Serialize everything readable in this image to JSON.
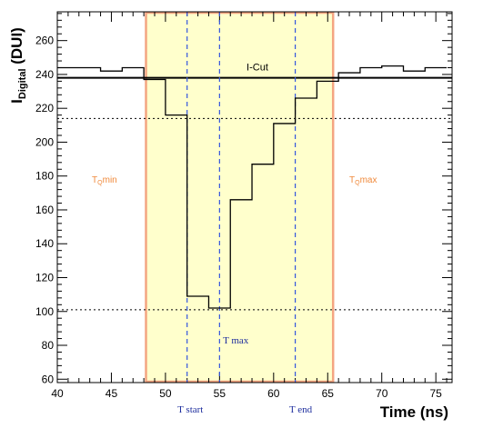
{
  "chart_data": {
    "type": "line",
    "xlabel": "Time (ns)",
    "ylabel_main": "I",
    "ylabel_sub": "Digital",
    "ylabel_unit": " (DUI)",
    "xlim": [
      40,
      76.5
    ],
    "ylim": [
      58,
      277
    ],
    "x_ticks": [
      40,
      45,
      50,
      55,
      60,
      65,
      70,
      75
    ],
    "x_tick_labels": [
      "40",
      "45",
      "50",
      "55",
      "60",
      "65",
      "70",
      "75"
    ],
    "y_ticks": [
      60,
      80,
      100,
      120,
      140,
      160,
      180,
      200,
      220,
      240,
      260
    ],
    "y_tick_labels": [
      "60",
      "80",
      "100",
      "120",
      "140",
      "160",
      "180",
      "200",
      "220",
      "240",
      "260"
    ],
    "grid": false,
    "region": {
      "x_start": 48.2,
      "x_end": 65.5,
      "fill": "#ffffcc",
      "edge": "#f4a582"
    },
    "series": [
      {
        "style": "step",
        "color": "#000000",
        "edges": [
          40,
          42,
          44,
          46,
          48,
          50,
          52,
          54,
          56,
          58,
          60,
          62,
          64,
          66,
          68,
          70,
          72,
          74,
          76
        ],
        "values": [
          244,
          244,
          242,
          244,
          237,
          216,
          109,
          102,
          166,
          187,
          211,
          226,
          236,
          241,
          244,
          245,
          242,
          244
        ]
      }
    ],
    "hlines": [
      {
        "y": 238,
        "style": "solid",
        "width": 2,
        "label": "I-Cut"
      },
      {
        "y": 214,
        "style": "dotted",
        "width": 1
      },
      {
        "y": 101,
        "style": "dotted",
        "width": 1
      }
    ],
    "vlines": [
      {
        "x": 52,
        "color": "#3355dd",
        "label": "T start"
      },
      {
        "x": 55,
        "color": "#3355dd",
        "label": "T max"
      },
      {
        "x": 62,
        "color": "#3355dd",
        "label": "T end"
      }
    ],
    "annotations": {
      "icut": "I-Cut",
      "tqmin_main": "T",
      "tqmin_sub": "Q",
      "tqmin_rest": "min",
      "tqmax_main": "T",
      "tqmax_sub": "Q",
      "tqmax_rest": "max",
      "tstart": "T start",
      "tmax": "T max",
      "tend": "T end"
    }
  }
}
